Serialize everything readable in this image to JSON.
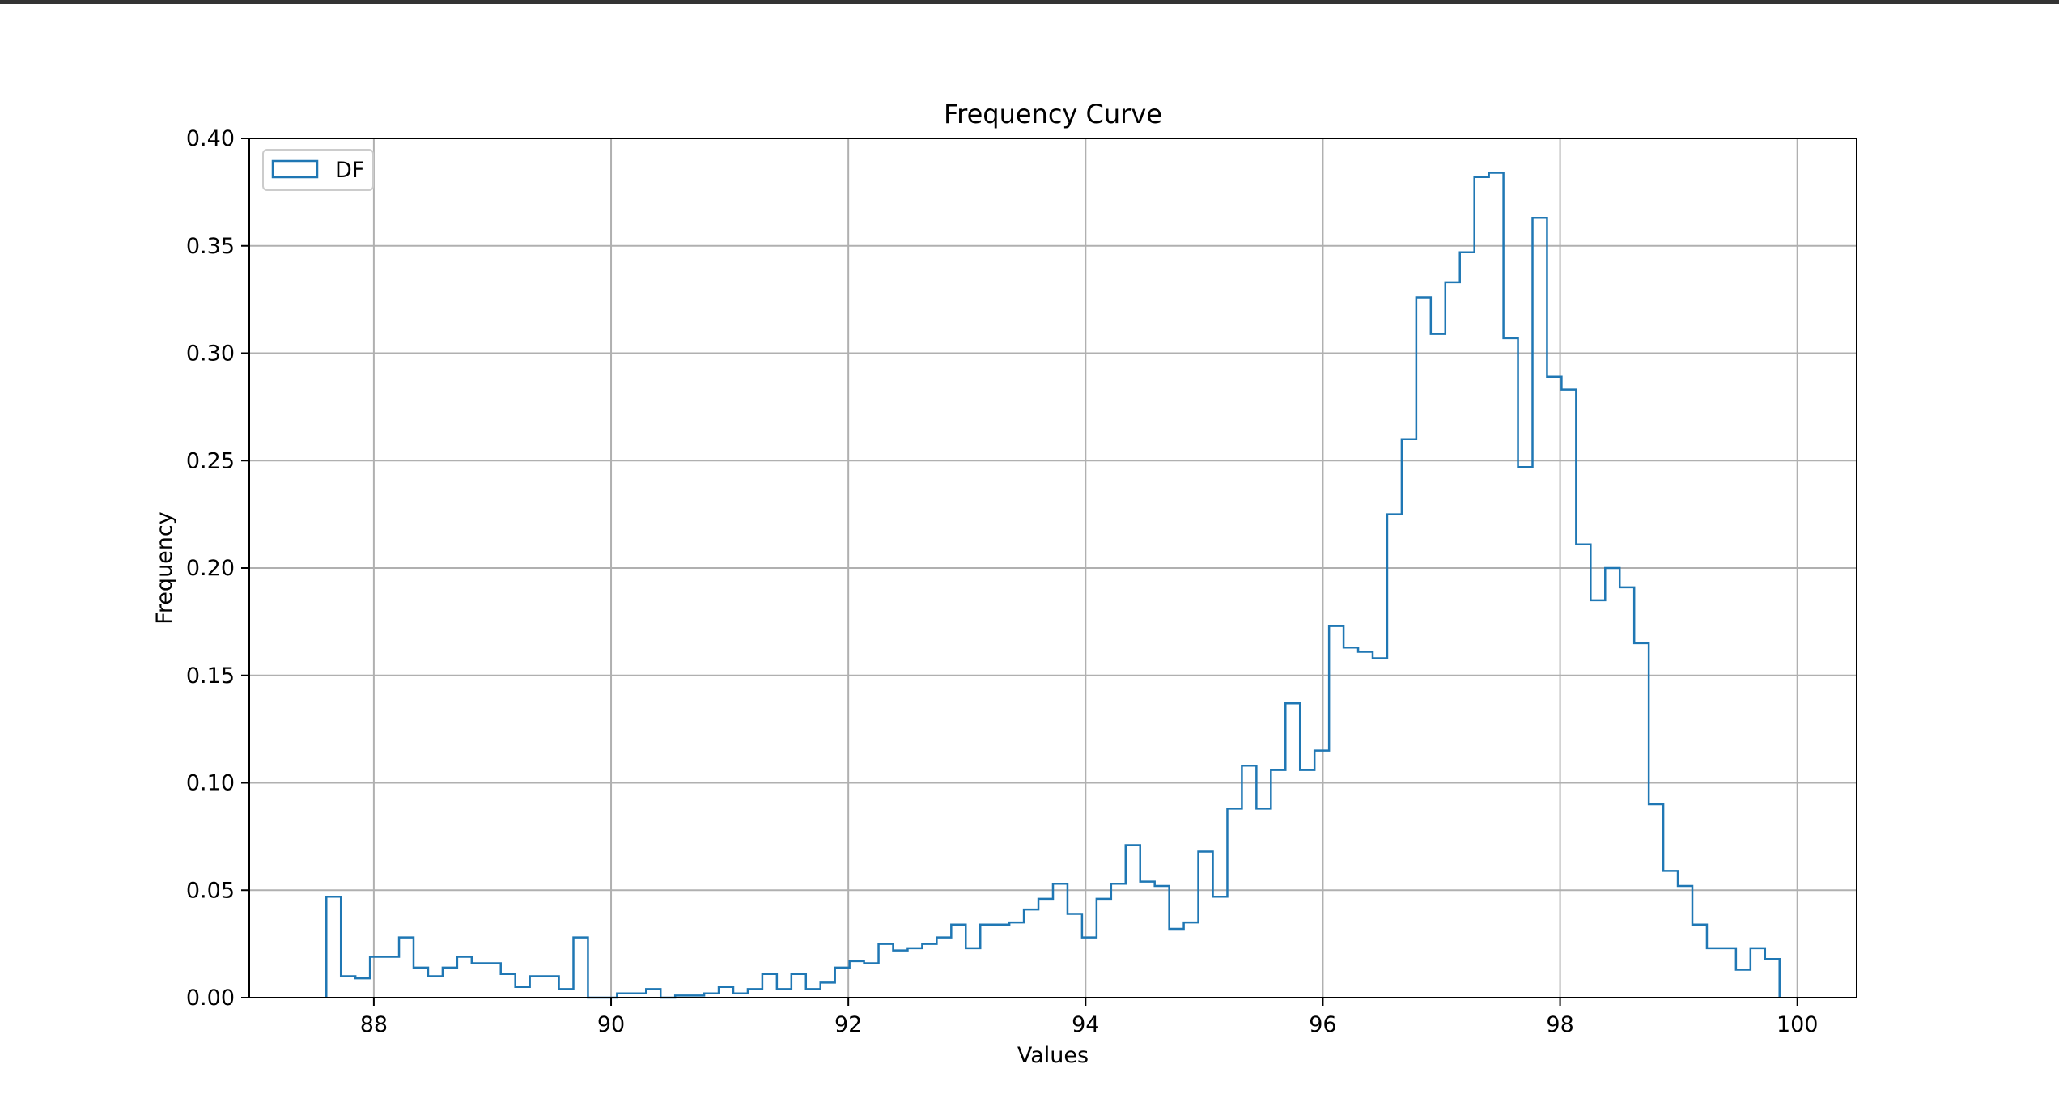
{
  "colors": {
    "series": "#1f77b4",
    "grid": "#b0b0b0",
    "axes": "#000000",
    "window_bar": "#333333"
  },
  "chart_data": {
    "type": "histogram",
    "title": "Frequency Curve",
    "xlabel": "Values",
    "ylabel": "Frequency",
    "xlim": [
      86.95,
      100.5
    ],
    "ylim": [
      0,
      0.4
    ],
    "xticks": [
      88,
      90,
      92,
      94,
      96,
      98,
      100
    ],
    "xtick_labels": [
      "88",
      "90",
      "92",
      "94",
      "96",
      "98",
      "100"
    ],
    "yticks": [
      0,
      0.05,
      0.1,
      0.15,
      0.2,
      0.25,
      0.3,
      0.35,
      0.4
    ],
    "ytick_labels": [
      "0.00",
      "0.05",
      "0.10",
      "0.15",
      "0.20",
      "0.25",
      "0.30",
      "0.35",
      "0.40"
    ],
    "grid": true,
    "legend": {
      "position": "upper-left",
      "entries": [
        "DF"
      ]
    },
    "series": [
      {
        "name": "DF",
        "style": "step",
        "bin_start": 87.6,
        "bin_width": 0.1225,
        "values": [
          0.047,
          0.01,
          0.009,
          0.019,
          0.019,
          0.028,
          0.014,
          0.01,
          0.014,
          0.019,
          0.016,
          0.016,
          0.011,
          0.005,
          0.01,
          0.01,
          0.004,
          0.028,
          0.0,
          0.0,
          0.002,
          0.002,
          0.004,
          0.0,
          0.001,
          0.001,
          0.002,
          0.005,
          0.002,
          0.004,
          0.011,
          0.004,
          0.011,
          0.004,
          0.007,
          0.014,
          0.017,
          0.016,
          0.025,
          0.022,
          0.023,
          0.025,
          0.028,
          0.034,
          0.023,
          0.034,
          0.034,
          0.035,
          0.041,
          0.046,
          0.053,
          0.039,
          0.028,
          0.046,
          0.053,
          0.071,
          0.054,
          0.052,
          0.032,
          0.035,
          0.068,
          0.047,
          0.088,
          0.108,
          0.088,
          0.106,
          0.137,
          0.106,
          0.115,
          0.173,
          0.163,
          0.161,
          0.158,
          0.225,
          0.26,
          0.326,
          0.309,
          0.333,
          0.347,
          0.382,
          0.384,
          0.307,
          0.247,
          0.363,
          0.289,
          0.283,
          0.211,
          0.185,
          0.2,
          0.191,
          0.165,
          0.09,
          0.059,
          0.052,
          0.034,
          0.023,
          0.023,
          0.013,
          0.023,
          0.018
        ]
      }
    ]
  }
}
